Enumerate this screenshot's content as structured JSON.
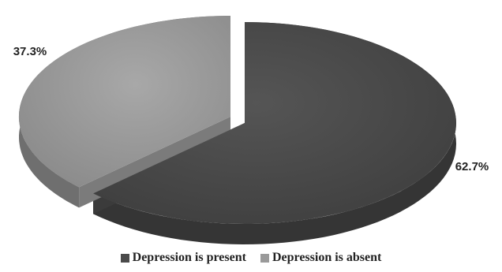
{
  "chart_data": {
    "type": "pie",
    "style": "3d-exploded",
    "slices": [
      {
        "name": "Depression is present",
        "value": 62.7,
        "label": "62.7%",
        "color": "#4a4a4a"
      },
      {
        "name": "Depression is absent",
        "value": 37.3,
        "label": "37.3%",
        "color": "#9a9a9a"
      }
    ],
    "legend": {
      "position": "bottom",
      "items": [
        "Depression is present",
        "Depression is absent"
      ]
    }
  }
}
